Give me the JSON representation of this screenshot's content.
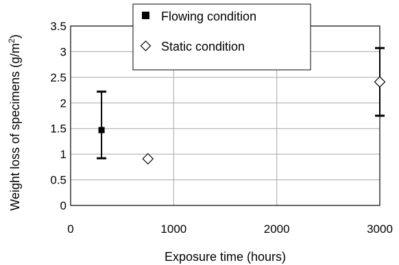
{
  "chart_data": {
    "type": "scatter",
    "xlabel": "Exposure time (hours)",
    "ylabel_main": "Weight loss of specimens (g/m",
    "ylabel_sup": "2",
    "ylabel_tail": ")",
    "xlim": [
      0,
      3000
    ],
    "ylim": [
      0,
      3.5
    ],
    "x_ticks": [
      0,
      1000,
      2000,
      3000
    ],
    "x_tick_labels": [
      "0",
      "1000",
      "2000",
      "3000"
    ],
    "y_ticks": [
      0,
      0.5,
      1,
      1.5,
      2,
      2.5,
      3,
      3.5
    ],
    "y_tick_labels": [
      "0",
      "0.5",
      "1",
      "1.5",
      "2",
      "2.5",
      "3",
      "3.5"
    ],
    "grid": "major",
    "legend_position": "top-center",
    "series": [
      {
        "name": "Flowing condition",
        "marker": "filled-square",
        "color": "#000000",
        "points": [
          {
            "x": 300,
            "y": 1.47,
            "err_low": 0.92,
            "err_high": 2.22
          }
        ]
      },
      {
        "name": "Static condition",
        "marker": "open-diamond",
        "color": "#000000",
        "points": [
          {
            "x": 750,
            "y": 0.91
          },
          {
            "x": 3000,
            "y": 2.41,
            "err_low": 1.75,
            "err_high": 3.07
          }
        ]
      }
    ]
  }
}
